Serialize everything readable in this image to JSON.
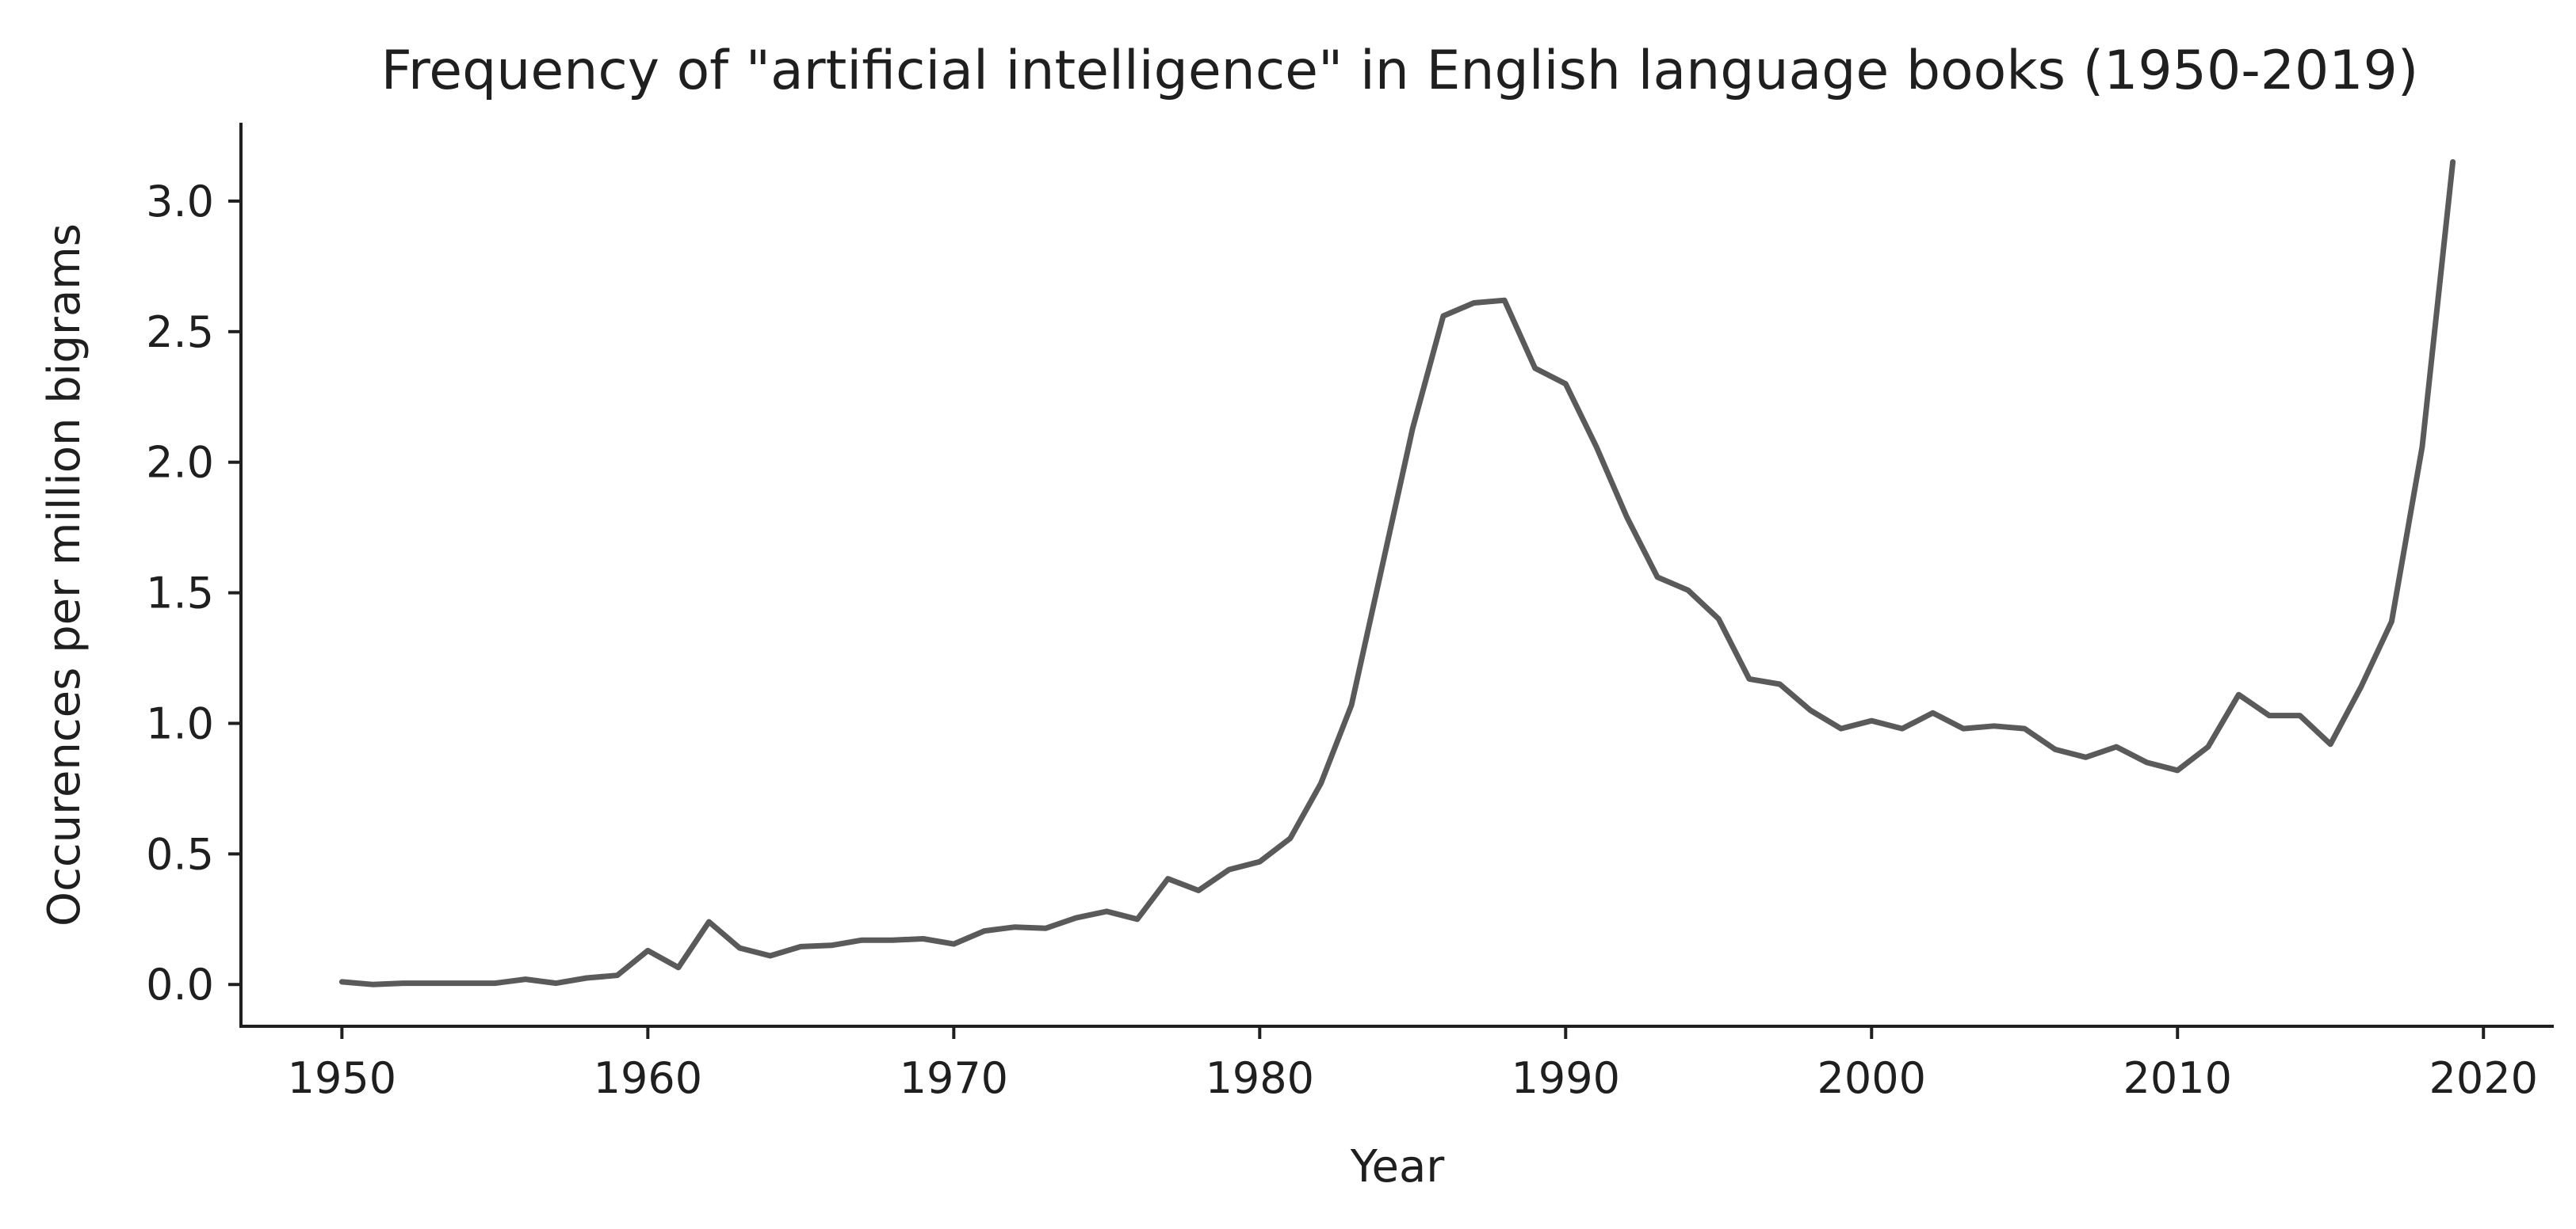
{
  "chart_data": {
    "type": "line",
    "title": "Frequency of \"artificial intelligence\" in English language books (1950-2019)",
    "xlabel": "Year",
    "ylabel": "Occurences per million bigrams",
    "xlim": [
      1946.7,
      2022.3
    ],
    "ylim": [
      -0.16,
      3.3
    ],
    "xticks": [
      1950,
      1960,
      1970,
      1980,
      1990,
      2000,
      2010,
      2020
    ],
    "yticks": [
      0.0,
      0.5,
      1.0,
      1.5,
      2.0,
      2.5,
      3.0
    ],
    "ytick_labels": [
      "0.0",
      "0.5",
      "1.0",
      "1.5",
      "2.0",
      "2.5",
      "3.0"
    ],
    "grid": false,
    "line_color": "#5a5a5a",
    "x": [
      1950,
      1951,
      1952,
      1953,
      1954,
      1955,
      1956,
      1957,
      1958,
      1959,
      1960,
      1961,
      1962,
      1963,
      1964,
      1965,
      1966,
      1967,
      1968,
      1969,
      1970,
      1971,
      1972,
      1973,
      1974,
      1975,
      1976,
      1977,
      1978,
      1979,
      1980,
      1981,
      1982,
      1983,
      1984,
      1985,
      1986,
      1987,
      1988,
      1989,
      1990,
      1991,
      1992,
      1993,
      1994,
      1995,
      1996,
      1997,
      1998,
      1999,
      2000,
      2001,
      2002,
      2003,
      2004,
      2005,
      2006,
      2007,
      2008,
      2009,
      2010,
      2011,
      2012,
      2013,
      2014,
      2015,
      2016,
      2017,
      2018,
      2019
    ],
    "y": [
      0.01,
      0.0,
      0.005,
      0.005,
      0.005,
      0.005,
      0.02,
      0.005,
      0.025,
      0.035,
      0.13,
      0.065,
      0.24,
      0.14,
      0.11,
      0.145,
      0.15,
      0.17,
      0.17,
      0.175,
      0.155,
      0.205,
      0.22,
      0.215,
      0.255,
      0.28,
      0.25,
      0.405,
      0.36,
      0.44,
      0.47,
      0.56,
      0.77,
      1.07,
      1.6,
      2.13,
      2.56,
      2.61,
      2.62,
      2.36,
      2.3,
      2.06,
      1.79,
      1.56,
      1.51,
      1.4,
      1.17,
      1.15,
      1.05,
      0.98,
      1.01,
      0.98,
      1.04,
      0.98,
      0.99,
      0.98,
      0.9,
      0.87,
      0.91,
      0.85,
      0.82,
      0.91,
      1.11,
      1.03,
      1.03,
      0.92,
      1.14,
      1.39,
      2.06,
      3.15
    ]
  }
}
